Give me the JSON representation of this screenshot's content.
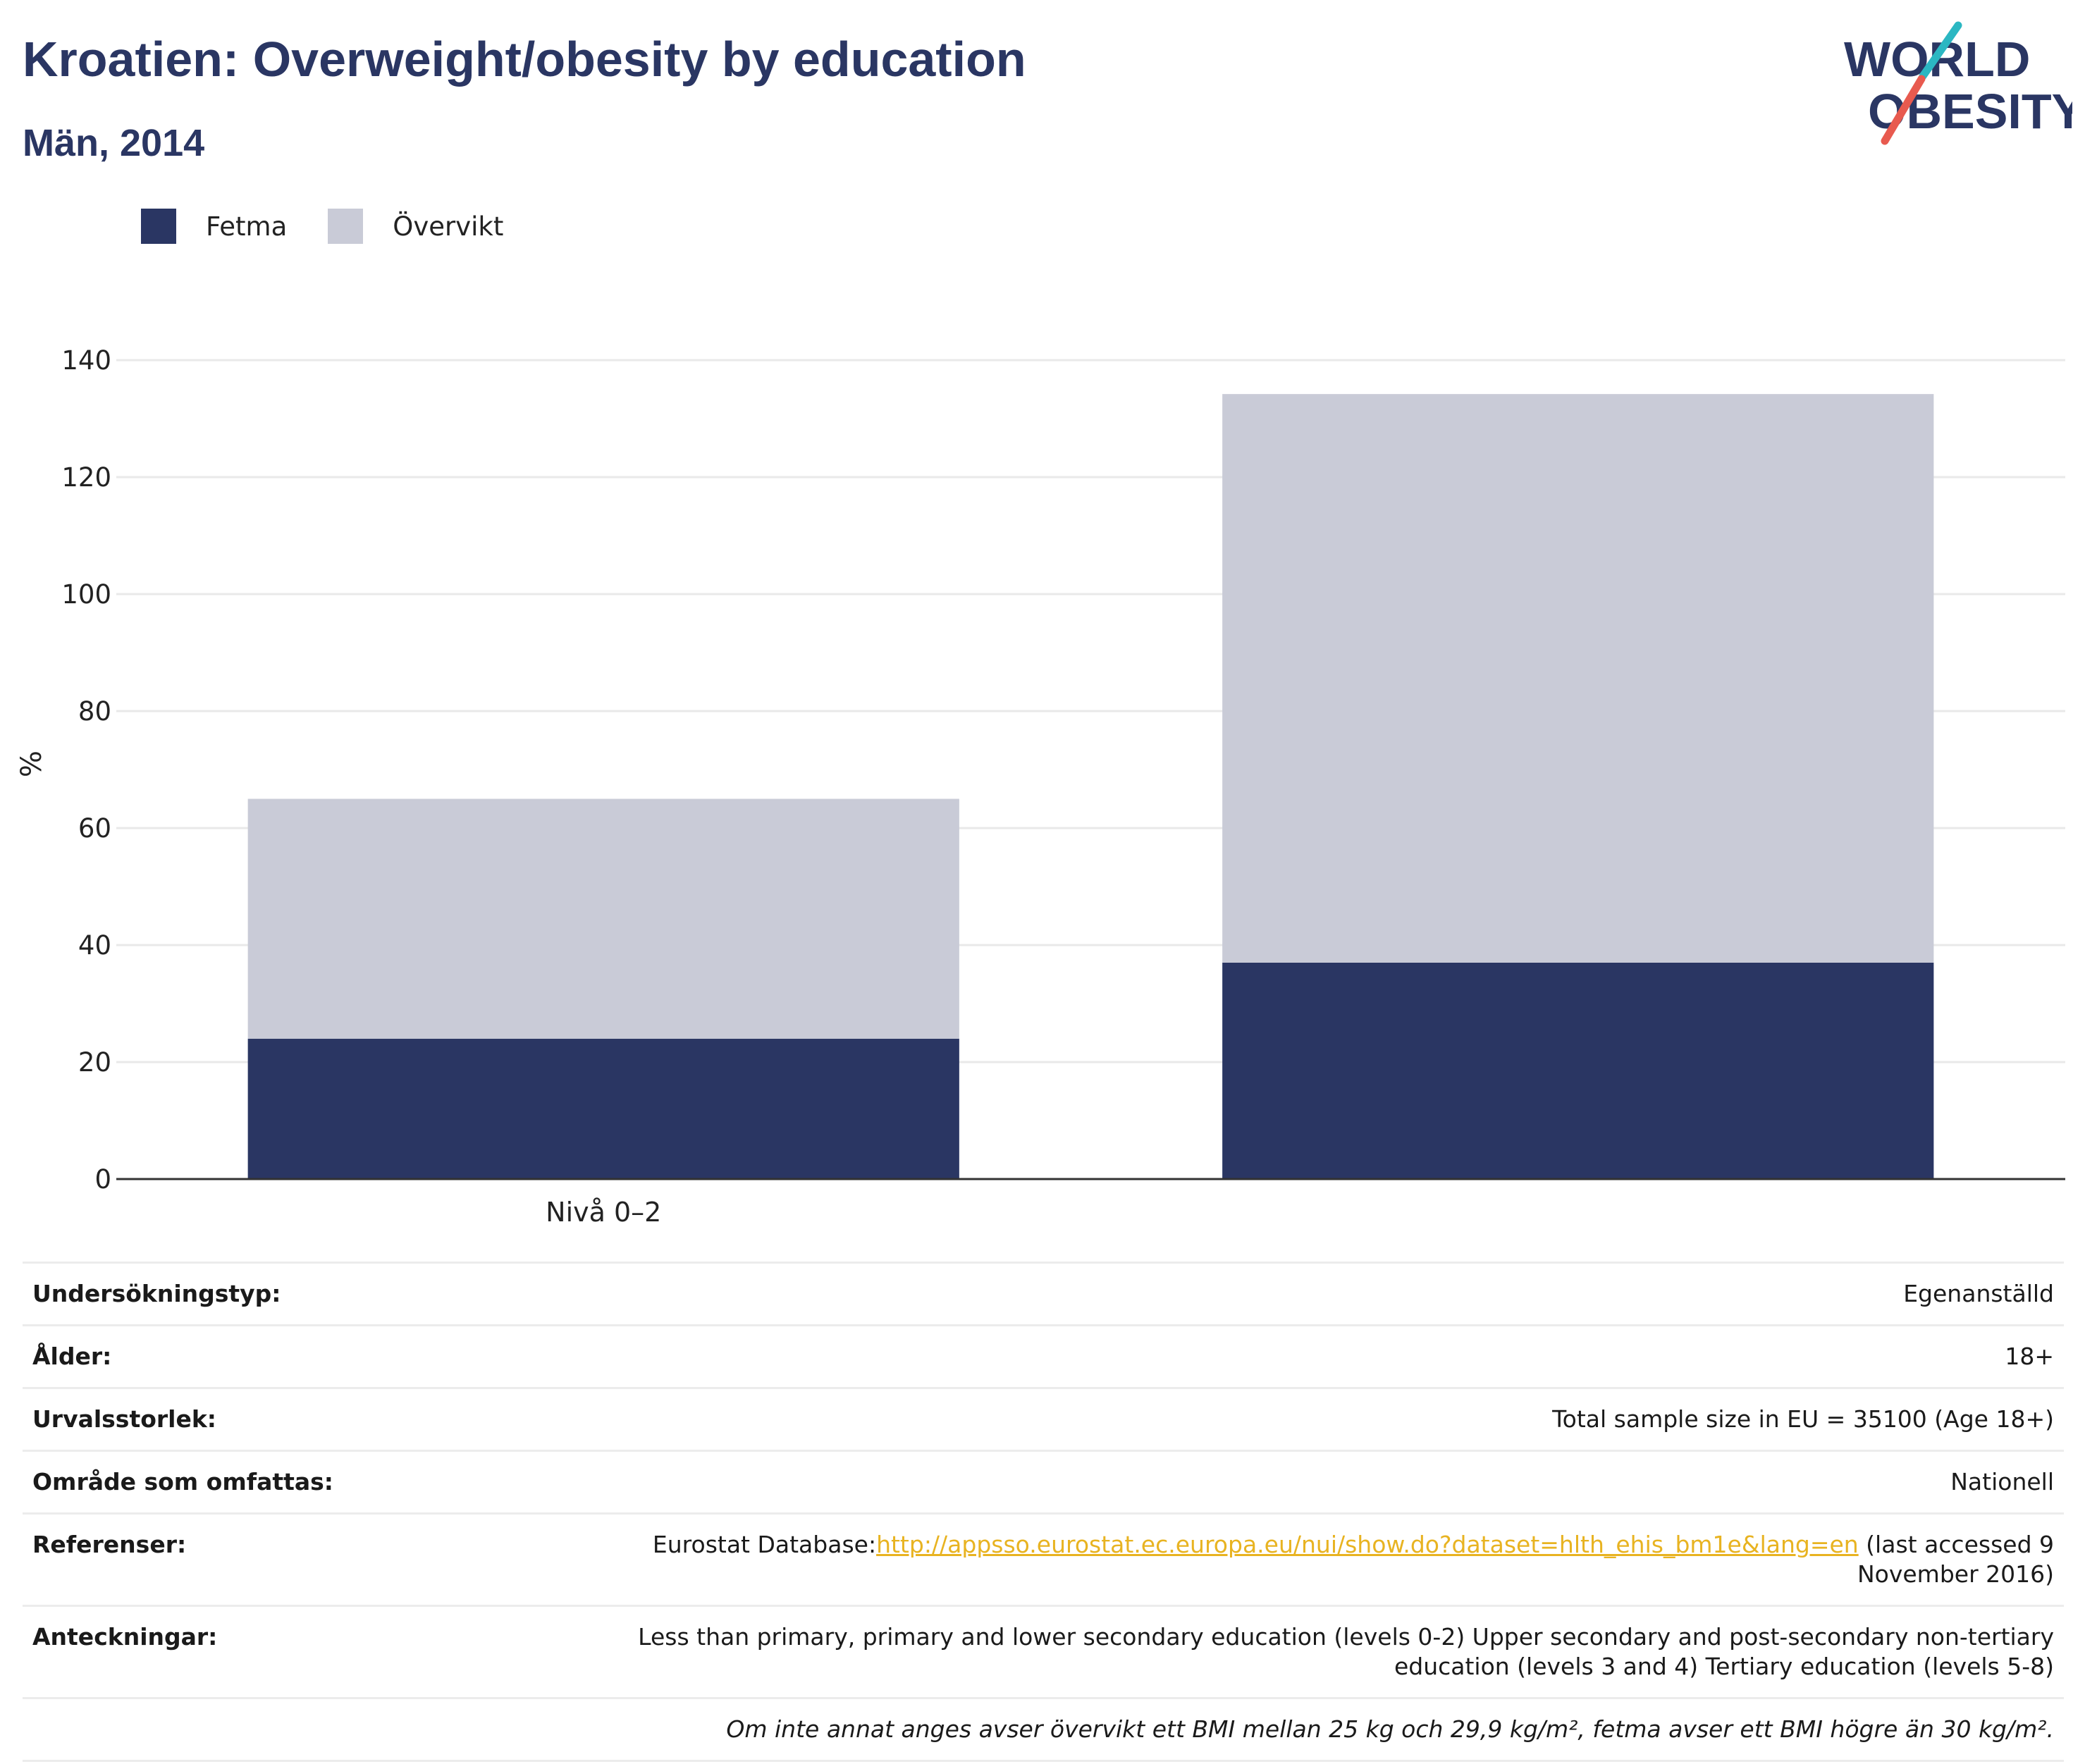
{
  "header": {
    "title": "Kroatien: Overweight/obesity by education",
    "subtitle": "Män, 2014"
  },
  "logo": {
    "line1": "WORLD",
    "line2": "OBESITY"
  },
  "colors": {
    "fetma": "#2a3663",
    "overvikt": "#c9cbd7",
    "title": "#2a3663",
    "link": "#e8b321",
    "logo_teal": "#2bb7c2",
    "logo_red": "#e85a4f"
  },
  "chart_data": {
    "type": "bar",
    "stacked": true,
    "categories": [
      "Nivå 0–2",
      ""
    ],
    "series": [
      {
        "name": "Fetma",
        "values": [
          24.0,
          37.0
        ]
      },
      {
        "name": "Övervikt",
        "values": [
          41.0,
          97.2
        ]
      }
    ],
    "ylabel": "%",
    "ylim": [
      0,
      140
    ],
    "yticks": [
      0,
      20,
      40,
      60,
      80,
      100,
      120,
      140
    ],
    "grid": true,
    "legend_position": "top-left"
  },
  "info": {
    "rows": [
      {
        "label": "Undersökningstyp:",
        "value": "Egenanställd"
      },
      {
        "label": "Ålder:",
        "value": "18+"
      },
      {
        "label": "Urvalsstorlek:",
        "value": "Total sample size in EU = 35100 (Age 18+)"
      },
      {
        "label": "Område som omfattas:",
        "value": "Nationell"
      }
    ],
    "references": {
      "label": "Referenser:",
      "prefix": "Eurostat Database:",
      "link": "http://appsso.eurostat.ec.europa.eu/nui/show.do?dataset=hlth_ehis_bm1e&lang=en",
      "suffix": " (last accessed 9 November 2016)"
    },
    "notes": {
      "label": "Anteckningar:",
      "value": "Less than primary, primary and lower secondary education (levels 0-2) Upper secondary and post-secondary non-tertiary education (levels 3 and 4) Tertiary education (levels 5-8)"
    },
    "footnote": "Om inte annat anges avser övervikt ett BMI mellan 25 kg och 29,9 kg/m², fetma avser ett BMI högre än 30 kg/m²."
  }
}
